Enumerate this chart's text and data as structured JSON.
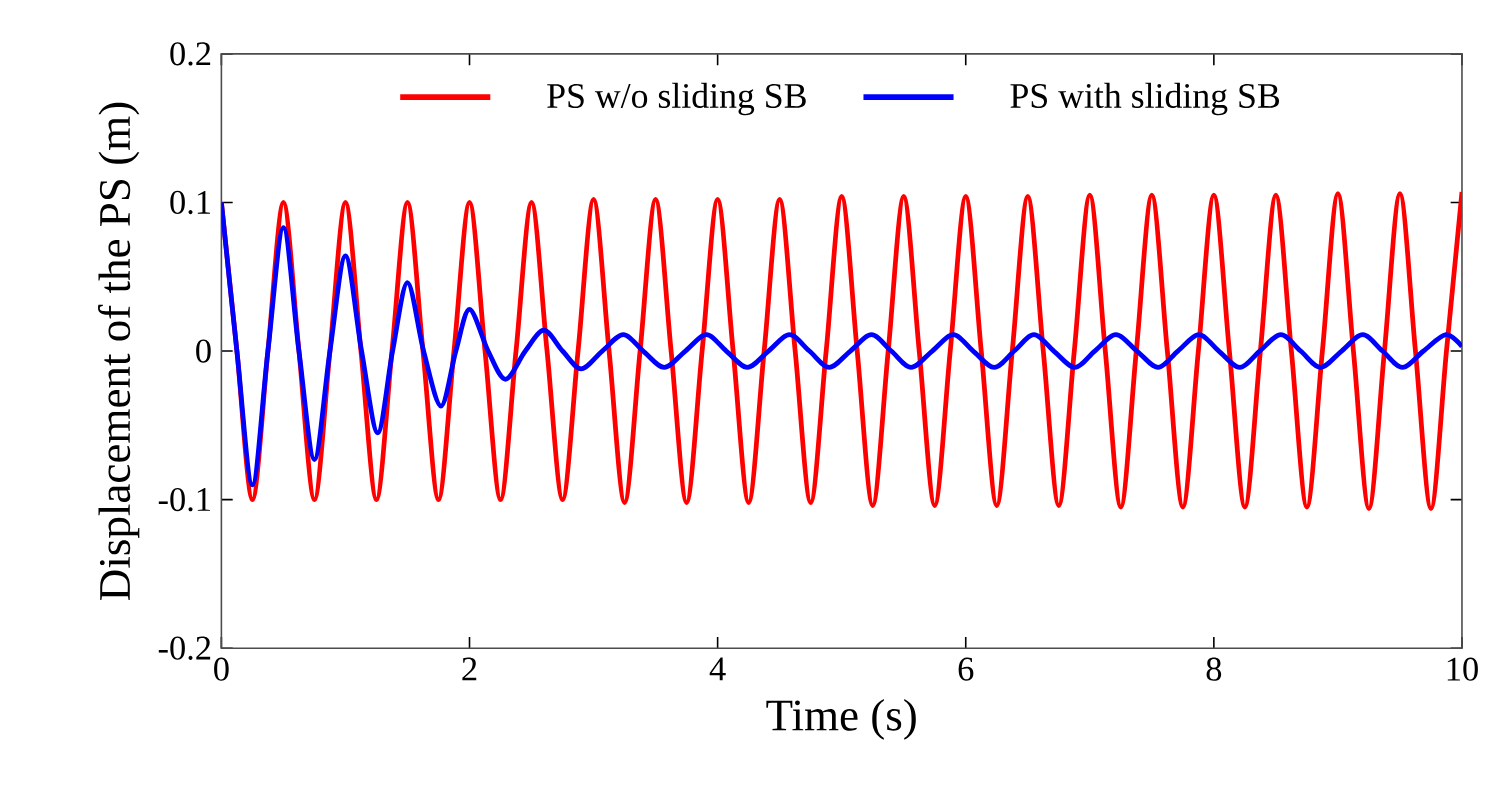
{
  "chart_data": {
    "type": "line",
    "xlabel": "Time (s)",
    "ylabel": "Displacement of the PS (m)",
    "xlim": [
      0,
      10
    ],
    "ylim": [
      -0.2,
      0.2
    ],
    "xticks": [
      0,
      2,
      4,
      6,
      8,
      10
    ],
    "yticks": [
      {
        "value": -0.2,
        "label": "-0.2"
      },
      {
        "value": -0.1,
        "label": "-0.1"
      },
      0,
      0.1,
      0.2
    ],
    "grid": false,
    "legend": "top",
    "marker": "none",
    "line_style": "solid",
    "series": [
      {
        "name": "PS w/o sliding SB",
        "color": "#ff0000",
        "x": [
          0,
          0.125,
          0.25,
          0.375,
          0.5,
          0.625,
          0.75,
          0.875,
          1,
          1.125,
          1.25,
          1.375,
          1.5,
          1.625,
          1.75,
          1.875,
          2,
          2.125,
          2.25,
          2.375,
          2.5,
          2.625,
          2.75,
          2.875,
          3,
          3.125,
          3.25,
          3.375,
          3.5,
          3.625,
          3.75,
          3.875,
          4,
          4.125,
          4.25,
          4.375,
          4.5,
          4.625,
          4.75,
          4.875,
          5,
          5.125,
          5.25,
          5.375,
          5.5,
          5.625,
          5.75,
          5.875,
          6,
          6.125,
          6.25,
          6.375,
          6.5,
          6.625,
          6.75,
          6.875,
          7,
          7.125,
          7.25,
          7.375,
          7.5,
          7.625,
          7.75,
          7.875,
          8,
          8.125,
          8.25,
          8.375,
          8.5,
          8.625,
          8.75,
          8.875,
          9,
          9.125,
          9.25,
          9.375,
          9.5,
          9.625,
          9.75,
          9.875,
          10
        ],
        "values": [
          0.1,
          0,
          -0.1,
          0,
          0.1,
          0,
          -0.1,
          0,
          0.1,
          0,
          -0.1,
          0,
          0.1,
          0,
          -0.1,
          0,
          0.1,
          0,
          -0.1,
          0,
          0.1,
          0,
          -0.1,
          0,
          0.102,
          0,
          -0.102,
          0,
          0.102,
          0,
          -0.102,
          0,
          0.102,
          0,
          -0.102,
          0,
          0.102,
          0,
          -0.102,
          0,
          0.104,
          0,
          -0.104,
          0,
          0.104,
          0,
          -0.104,
          0,
          0.104,
          0,
          -0.104,
          0,
          0.104,
          0,
          -0.104,
          0,
          0.105,
          0,
          -0.105,
          0,
          0.105,
          0,
          -0.105,
          0,
          0.105,
          0,
          -0.105,
          0,
          0.105,
          0,
          -0.105,
          0,
          0.106,
          0,
          -0.106,
          0,
          0.106,
          0,
          -0.106,
          0,
          0.107
        ]
      },
      {
        "name": "PS with sliding SB",
        "color": "#0000ff",
        "x": [
          0,
          0.125,
          0.25,
          0.375,
          0.5,
          0.625,
          0.75,
          0.875,
          1,
          1.13,
          1.26,
          1.38,
          1.5,
          1.63,
          1.77,
          1.89,
          2,
          2.15,
          2.29,
          2.45,
          2.6,
          2.75,
          2.9,
          3.07,
          3.24,
          3.4,
          3.57,
          3.74,
          3.91,
          4.07,
          4.24,
          4.41,
          4.58,
          4.74,
          4.9,
          5.07,
          5.24,
          5.4,
          5.56,
          5.73,
          5.9,
          6.06,
          6.23,
          6.39,
          6.55,
          6.71,
          6.88,
          7.04,
          7.21,
          7.38,
          7.55,
          7.71,
          7.88,
          8.04,
          8.21,
          8.37,
          8.54,
          8.7,
          8.86,
          9.03,
          9.2,
          9.36,
          9.52,
          9.69,
          9.87,
          10
        ],
        "values": [
          0.1,
          0,
          -0.09,
          0,
          0.083,
          0,
          -0.073,
          0,
          0.064,
          0,
          -0.055,
          0,
          0.046,
          0,
          -0.037,
          0,
          0.028,
          0,
          -0.019,
          0,
          0.014,
          0,
          -0.012,
          0,
          0.011,
          0,
          -0.011,
          0,
          0.011,
          0,
          -0.011,
          0,
          0.011,
          0,
          -0.011,
          0,
          0.011,
          0,
          -0.011,
          0,
          0.011,
          0,
          -0.011,
          0,
          0.011,
          0,
          -0.011,
          0,
          0.011,
          0,
          -0.011,
          0,
          0.011,
          0,
          -0.011,
          0,
          0.011,
          0,
          -0.011,
          0,
          0.011,
          0,
          -0.011,
          0,
          0.011,
          0.003
        ]
      }
    ]
  }
}
